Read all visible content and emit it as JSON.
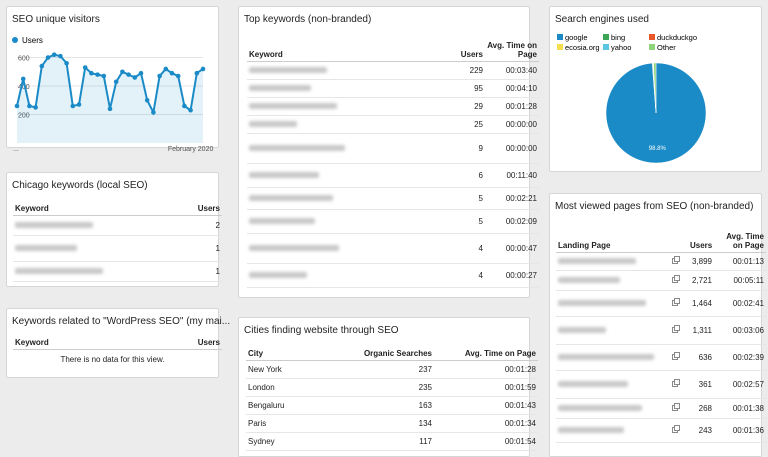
{
  "chart_data": [
    {
      "type": "line",
      "title": "SEO unique visitors",
      "categories": [
        "...",
        null,
        null,
        null,
        null,
        null,
        null,
        null,
        null,
        null,
        null,
        null,
        null,
        null,
        null,
        null,
        null,
        null,
        null,
        null,
        null,
        null,
        null,
        null,
        null,
        null,
        null,
        null,
        "February 2020",
        null,
        null
      ],
      "series": [
        {
          "name": "Users",
          "color": "#1a8bc6",
          "values": [
            260,
            450,
            260,
            250,
            540,
            600,
            620,
            610,
            560,
            260,
            270,
            530,
            490,
            480,
            470,
            240,
            430,
            500,
            480,
            460,
            490,
            300,
            215,
            470,
            520,
            490,
            470,
            260,
            230,
            490,
            520
          ]
        }
      ],
      "ylim": [
        0,
        660
      ],
      "yticks": [
        200,
        400,
        600
      ],
      "grid": true,
      "legend": "top-left"
    },
    {
      "type": "pie",
      "title": "Search engines used",
      "categories": [
        "google",
        "bing",
        "duckduckgo",
        "ecosia.org",
        "yahoo",
        "Other"
      ],
      "values": [
        98.8,
        0.2,
        0.1,
        0.05,
        0.05,
        0.8
      ],
      "value_labels": [
        "98.8%",
        null,
        null,
        null,
        null,
        null
      ],
      "colors": [
        "#1a8bc6",
        "#3aa655",
        "#e8572a",
        "#f2df4a",
        "#5bc6e3",
        "#8fd37a"
      ],
      "legend": "top"
    }
  ],
  "tables": {
    "chicago": {
      "title": "Chicago keywords (local SEO)",
      "columns": [
        "Keyword",
        "Users"
      ],
      "rows": [
        [
          null,
          2
        ],
        [
          null,
          1
        ],
        [
          null,
          1
        ]
      ]
    },
    "related": {
      "title": "Keywords related to \"WordPress SEO\" (my mai...",
      "columns": [
        "Keyword",
        "Users"
      ],
      "rows": [],
      "empty": "There is no data for this view."
    },
    "top": {
      "title": "Top keywords (non-branded)",
      "columns": [
        "Keyword",
        "Users",
        "Avg. Time on Page"
      ],
      "rows": [
        [
          null,
          229,
          "00:03:40"
        ],
        [
          null,
          95,
          "00:04:10"
        ],
        [
          null,
          29,
          "00:01:28"
        ],
        [
          null,
          25,
          "00:00:00"
        ],
        [
          null,
          9,
          "00:00:00"
        ],
        [
          null,
          6,
          "00:11:40"
        ],
        [
          null,
          5,
          "00:02:21"
        ],
        [
          null,
          5,
          "00:02:09"
        ],
        [
          null,
          4,
          "00:00:47"
        ],
        [
          null,
          4,
          "00:00:27"
        ]
      ]
    },
    "cities": {
      "title": "Cities finding website through SEO",
      "columns": [
        "City",
        "Organic Searches",
        "Avg. Time on Page"
      ],
      "rows": [
        [
          "New York",
          237,
          "00:01:28"
        ],
        [
          "London",
          235,
          "00:01:59"
        ],
        [
          "Bengaluru",
          163,
          "00:01:43"
        ],
        [
          "Paris",
          134,
          "00:01:34"
        ],
        [
          "Sydney",
          117,
          "00:01:54"
        ]
      ]
    },
    "pages": {
      "title": "Most viewed pages from SEO (non-branded)",
      "columns": [
        "Landing Page",
        "Users",
        "Avg. Time on Page"
      ],
      "rows": [
        [
          null,
          "3,899",
          "00:01:13"
        ],
        [
          null,
          "2,721",
          "00:05:11"
        ],
        [
          null,
          "1,464",
          "00:02:41"
        ],
        [
          null,
          "1,311",
          "00:03:06"
        ],
        [
          null,
          636,
          "00:02:39"
        ],
        [
          null,
          361,
          "00:02:57"
        ],
        [
          null,
          268,
          "00:01:38"
        ],
        [
          null,
          243,
          "00:01:36"
        ]
      ]
    }
  }
}
